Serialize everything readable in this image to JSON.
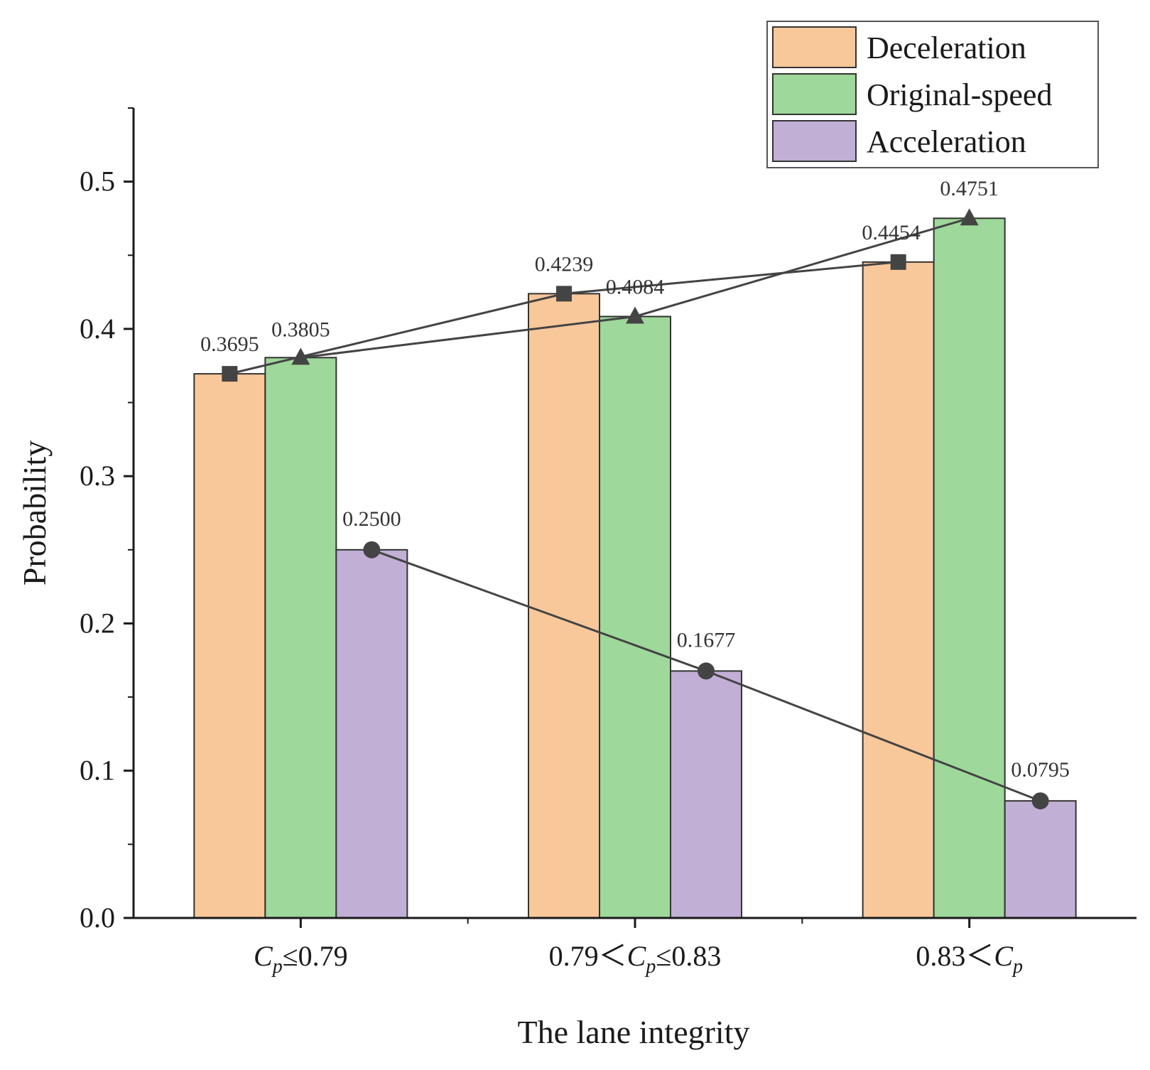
{
  "chart_data": {
    "type": "bar",
    "xlabel": "The lane integrity",
    "ylabel": "Probability",
    "ylim": [
      0,
      0.55
    ],
    "yticks": [
      "0.0",
      "0.1",
      "0.2",
      "0.3",
      "0.4",
      "0.5"
    ],
    "grid": false,
    "legend_position": "top-right",
    "categories": [
      {
        "main": "C",
        "sub": "p",
        "rest": "≤0.79",
        "pre": ""
      },
      {
        "pre": "0.79＜",
        "main": "C",
        "sub": "p",
        "rest": "≤0.83"
      },
      {
        "pre": "0.83＜",
        "main": "C",
        "sub": "p",
        "rest": ""
      }
    ],
    "series": [
      {
        "name": "Deceleration",
        "values": [
          0.3695,
          0.4239,
          0.4454
        ],
        "labels": [
          "0.3695",
          "0.4239",
          "0.4454"
        ],
        "color": "#F9C89A",
        "marker": "square"
      },
      {
        "name": "Original-speed",
        "values": [
          0.3805,
          0.4084,
          0.4751
        ],
        "labels": [
          "0.3805",
          "0.4084",
          "0.4751"
        ],
        "color": "#9ED89A",
        "marker": "triangle"
      },
      {
        "name": "Acceleration",
        "values": [
          0.25,
          0.1677,
          0.0795
        ],
        "labels": [
          "0.2500",
          "0.1677",
          "0.0795"
        ],
        "color": "#C2AFD6",
        "marker": "circle"
      }
    ]
  },
  "colors": {
    "axis": "#1a1a1a",
    "line": "#444444",
    "bar_stroke": "#333333"
  }
}
